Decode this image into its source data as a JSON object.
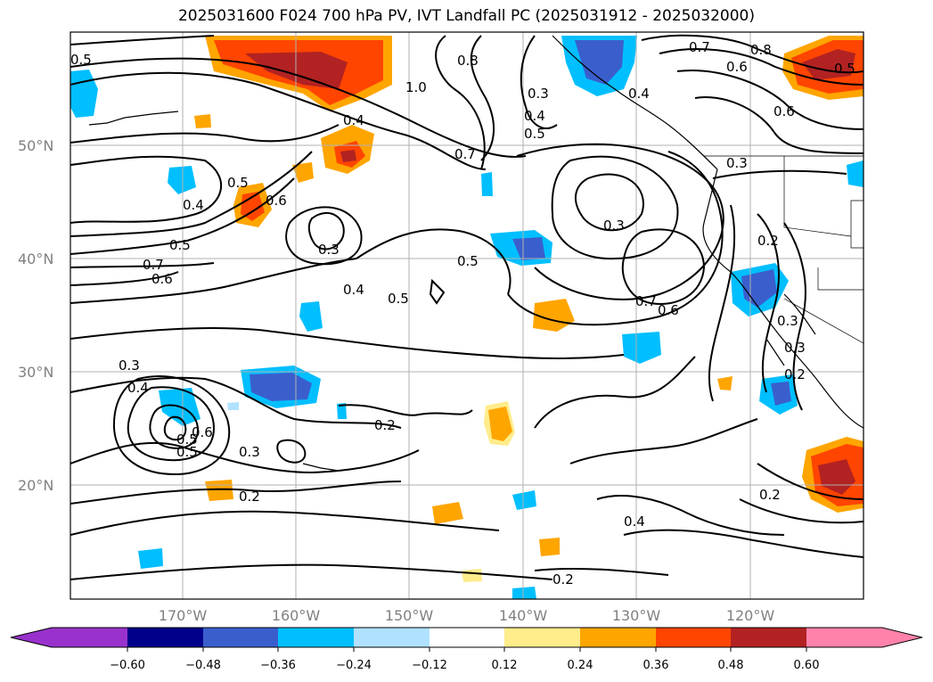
{
  "title": "2025031600 F024 700 hPa PV, IVT Landfall PC (2025031912 - 2025032000)",
  "map": {
    "lat_labels": [
      "50°N",
      "40°N",
      "30°N",
      "20°N"
    ],
    "lon_labels": [
      "170°W",
      "160°W",
      "150°W",
      "140°W",
      "130°W",
      "120°W"
    ],
    "contour_labels": [
      "0.7",
      "0.8",
      "0.6",
      "0.5",
      "1.0",
      "0.4",
      "0.3",
      "0.8",
      "0.4",
      "0.5",
      "0.7",
      "0.6",
      "0.5",
      "0.4",
      "0.6",
      "0.3",
      "0.3",
      "0.5",
      "0.5",
      "0.7",
      "0.6",
      "0.3",
      "0.2",
      "0.3",
      "0.3",
      "0.4",
      "0.2",
      "0.5",
      "0.5",
      "0.3",
      "0.2",
      "0.2",
      "0.4",
      "0.2",
      "0.2",
      "0.4",
      "0.5",
      "0.6",
      "0.5",
      "0.7",
      "0.6",
      "0.4",
      "0.3"
    ]
  },
  "colorbar": {
    "tick_labels": [
      "−0.60",
      "−0.48",
      "−0.36",
      "−0.24",
      "−0.12",
      "0.12",
      "0.24",
      "0.36",
      "0.48",
      "0.60"
    ],
    "colors": [
      "#9932cc",
      "#00008b",
      "#3a5fcd",
      "#00bfff",
      "#b0e2ff",
      "#ffffff",
      "#ffec8b",
      "#ffa500",
      "#ff4500",
      "#b22222",
      "#ff82ab"
    ]
  }
}
